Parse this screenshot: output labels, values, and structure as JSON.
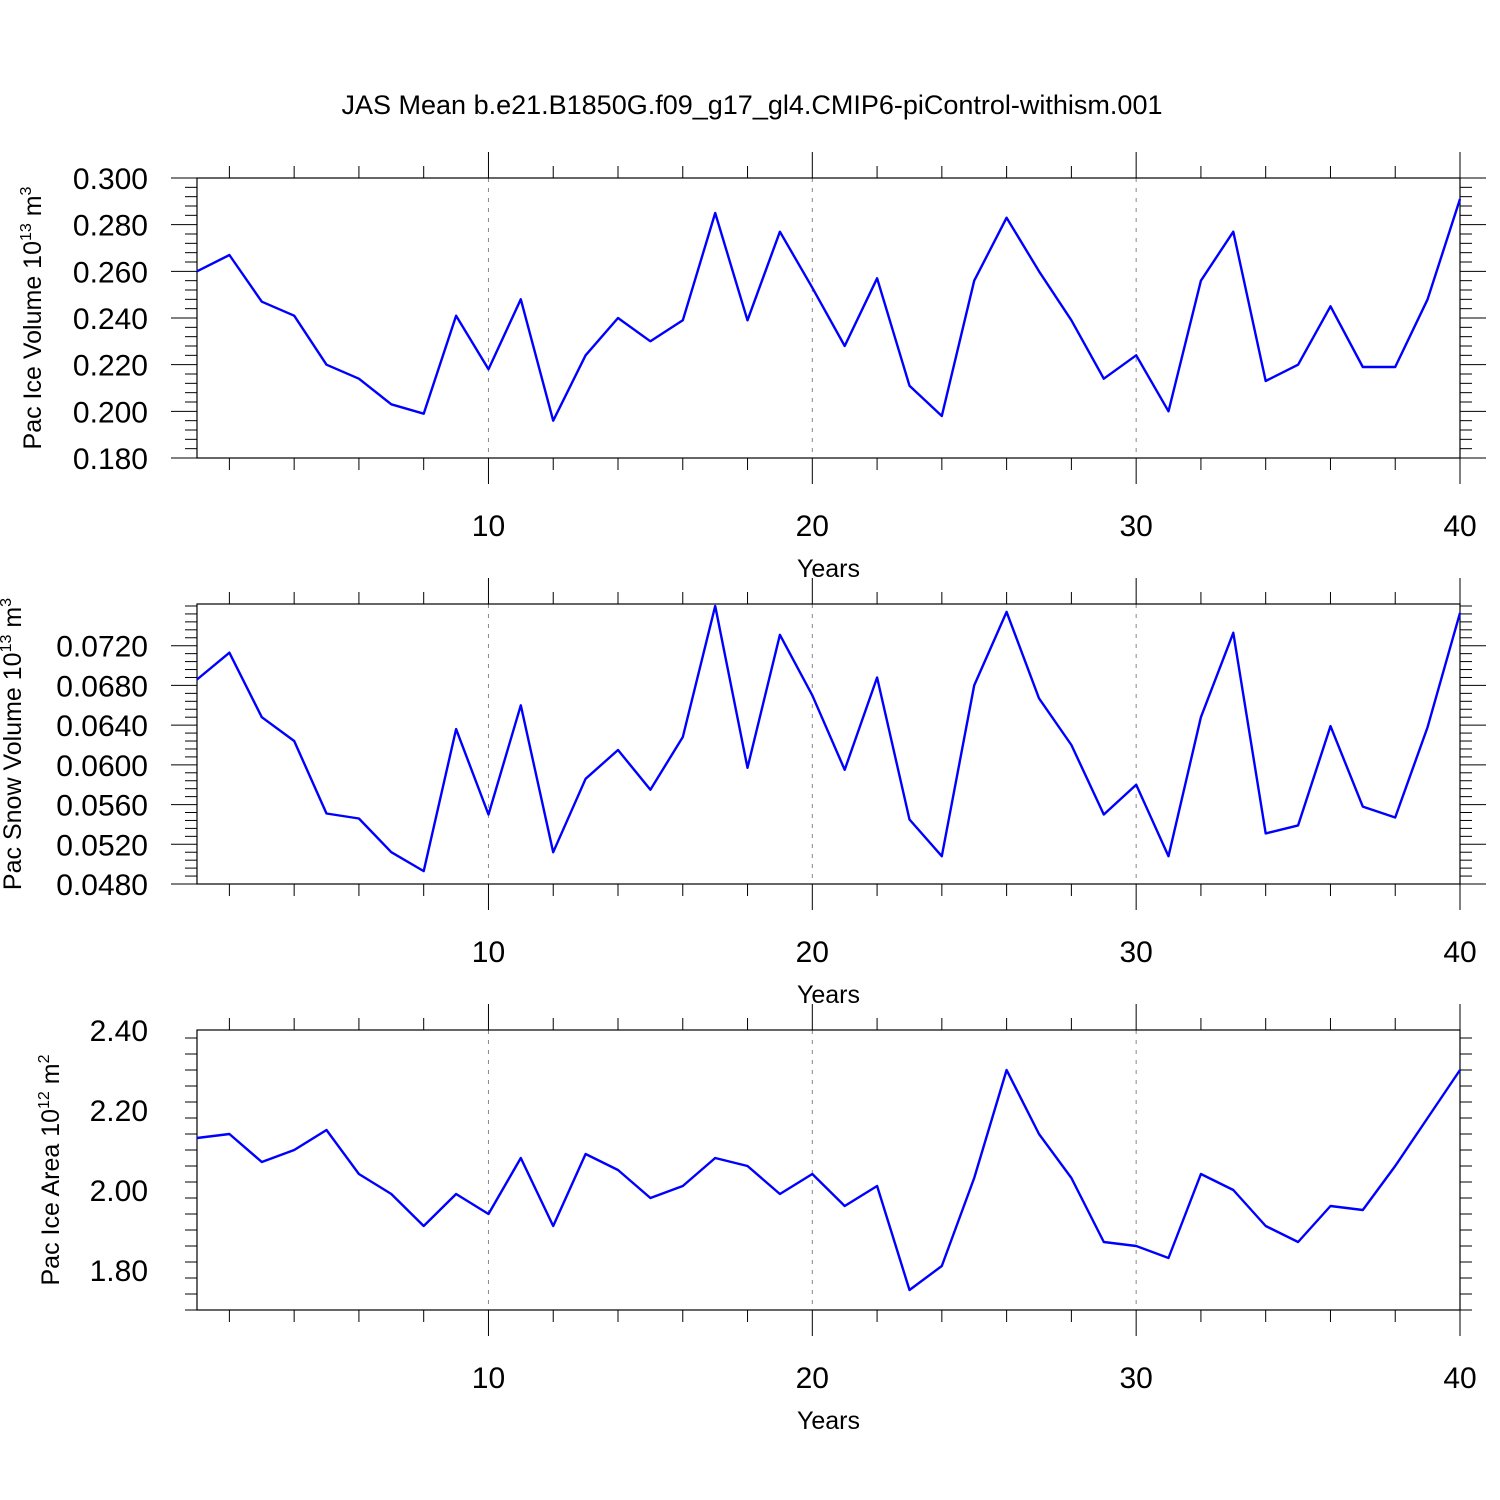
{
  "title": "JAS Mean b.e21.B1850G.f09_g17_gl4.CMIP6-piControl-withism.001",
  "colors": {
    "line": "#0000ff",
    "grid": "#888888"
  },
  "chart_data": [
    {
      "type": "line",
      "ylabel_main": "Pac Ice Volume 10",
      "ylabel_sup": "13",
      "ylabel_unit": " m",
      "ylabel_unit_sup": "3",
      "xlabel": "Years",
      "xlim": [
        1,
        40
      ],
      "ylim": [
        0.18,
        0.3
      ],
      "yticks": [
        "0.180",
        "0.200",
        "0.220",
        "0.240",
        "0.260",
        "0.280",
        "0.300"
      ],
      "ytick_values": [
        0.18,
        0.2,
        0.22,
        0.24,
        0.26,
        0.28,
        0.3
      ],
      "xticks": [
        "10",
        "20",
        "30",
        "40"
      ],
      "xtick_values": [
        10,
        20,
        30,
        40
      ],
      "grid": "vertical dashed at major x ticks",
      "x": [
        1,
        2,
        3,
        4,
        5,
        6,
        7,
        8,
        9,
        10,
        11,
        12,
        13,
        14,
        15,
        16,
        17,
        18,
        19,
        20,
        21,
        22,
        23,
        24,
        25,
        26,
        27,
        28,
        29,
        30,
        31,
        32,
        33,
        34,
        35,
        36,
        37,
        38,
        39,
        40
      ],
      "values": [
        0.26,
        0.267,
        0.247,
        0.241,
        0.22,
        0.214,
        0.203,
        0.199,
        0.241,
        0.218,
        0.248,
        0.196,
        0.224,
        0.24,
        0.23,
        0.239,
        0.285,
        0.239,
        0.277,
        0.253,
        0.228,
        0.257,
        0.211,
        0.198,
        0.256,
        0.283,
        0.26,
        0.239,
        0.214,
        0.224,
        0.2,
        0.256,
        0.277,
        0.213,
        0.22,
        0.245,
        0.219,
        0.219,
        0.248,
        0.291
      ]
    },
    {
      "type": "line",
      "ylabel_main": "Pac Snow Volume 10",
      "ylabel_sup": "13",
      "ylabel_unit": " m",
      "ylabel_unit_sup": "3",
      "xlabel": "Years",
      "xlim": [
        1,
        40
      ],
      "ylim": [
        0.048,
        0.0762
      ],
      "yticks": [
        "0.0480",
        "0.0520",
        "0.0560",
        "0.0600",
        "0.0640",
        "0.0680",
        "0.0720"
      ],
      "ytick_values": [
        0.048,
        0.052,
        0.056,
        0.06,
        0.064,
        0.068,
        0.072
      ],
      "xticks": [
        "10",
        "20",
        "30",
        "40"
      ],
      "xtick_values": [
        10,
        20,
        30,
        40
      ],
      "grid": "vertical dashed at major x ticks",
      "x": [
        1,
        2,
        3,
        4,
        5,
        6,
        7,
        8,
        9,
        10,
        11,
        12,
        13,
        14,
        15,
        16,
        17,
        18,
        19,
        20,
        21,
        22,
        23,
        24,
        25,
        26,
        27,
        28,
        29,
        30,
        31,
        32,
        33,
        34,
        35,
        36,
        37,
        38,
        39,
        40
      ],
      "values": [
        0.0686,
        0.0713,
        0.0648,
        0.0624,
        0.0551,
        0.0546,
        0.0512,
        0.0493,
        0.0636,
        0.055,
        0.066,
        0.0512,
        0.0586,
        0.0615,
        0.0575,
        0.0628,
        0.076,
        0.0597,
        0.0731,
        0.067,
        0.0595,
        0.0688,
        0.0545,
        0.0508,
        0.068,
        0.0754,
        0.0667,
        0.062,
        0.055,
        0.058,
        0.0508,
        0.0648,
        0.0733,
        0.0531,
        0.0539,
        0.0639,
        0.0558,
        0.0547,
        0.0638,
        0.0753
      ]
    },
    {
      "type": "line",
      "ylabel_main": "Pac Ice Area 10",
      "ylabel_sup": "12",
      "ylabel_unit": " m",
      "ylabel_unit_sup": "2",
      "xlabel": "Years",
      "xlim": [
        1,
        40
      ],
      "ylim": [
        1.7,
        2.4
      ],
      "yticks": [
        "1.80",
        "2.00",
        "2.20",
        "2.40"
      ],
      "ytick_values": [
        1.8,
        2.0,
        2.2,
        2.4
      ],
      "xticks": [
        "10",
        "20",
        "30",
        "40"
      ],
      "xtick_values": [
        10,
        20,
        30,
        40
      ],
      "grid": "vertical dashed at major x ticks",
      "x": [
        1,
        2,
        3,
        4,
        5,
        6,
        7,
        8,
        9,
        10,
        11,
        12,
        13,
        14,
        15,
        16,
        17,
        18,
        19,
        20,
        21,
        22,
        23,
        24,
        25,
        26,
        27,
        28,
        29,
        30,
        31,
        32,
        33,
        34,
        35,
        36,
        37,
        38,
        39,
        40
      ],
      "values": [
        2.13,
        2.14,
        2.07,
        2.1,
        2.15,
        2.04,
        1.99,
        1.91,
        1.99,
        1.94,
        2.08,
        1.91,
        2.09,
        2.05,
        1.98,
        2.01,
        2.08,
        2.06,
        1.99,
        2.04,
        1.96,
        2.01,
        1.75,
        1.81,
        2.03,
        2.3,
        2.14,
        2.03,
        1.87,
        1.86,
        1.83,
        2.04,
        2.0,
        1.91,
        1.87,
        1.96,
        1.95,
        2.06,
        2.18,
        2.3
      ]
    }
  ]
}
